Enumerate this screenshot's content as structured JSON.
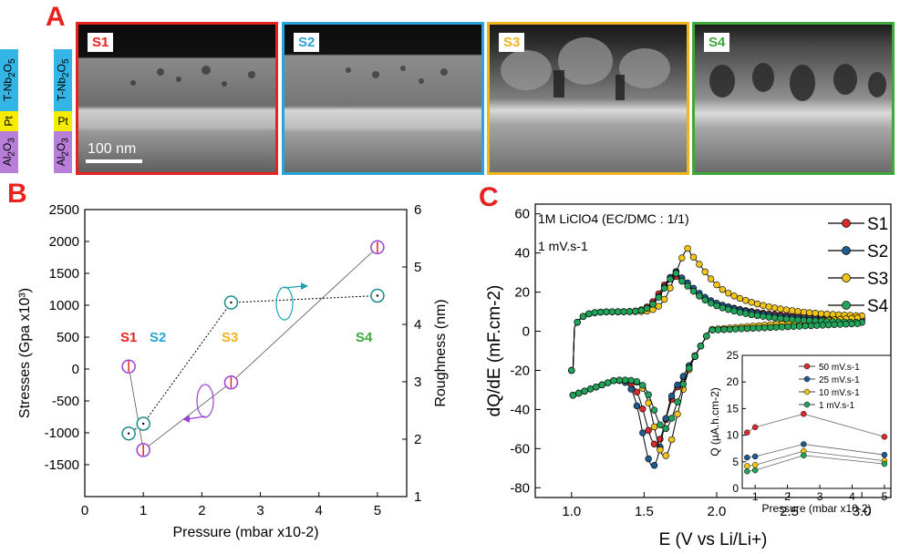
{
  "panel_a": {
    "letter": "A",
    "layers": [
      "T-Nb2O5",
      "Pt",
      "Al2O3"
    ],
    "layer_colors": [
      "#33b5e5",
      "#f5ec00",
      "#b87fd9"
    ],
    "scale_bar_label": "100 nm",
    "images": [
      {
        "label": "S1",
        "color": "#e8231f"
      },
      {
        "label": "S2",
        "color": "#2aa3d8"
      },
      {
        "label": "S3",
        "color": "#f2b31c"
      },
      {
        "label": "S4",
        "color": "#3ea83a"
      }
    ]
  },
  "panel_b": {
    "letter": "B",
    "sample_labels": [
      {
        "text": "S1",
        "color": "#e8231f"
      },
      {
        "text": "S2",
        "color": "#2aa3d8"
      },
      {
        "text": "S3",
        "color": "#f2b31c"
      },
      {
        "text": "S4",
        "color": "#3ea83a"
      }
    ]
  },
  "panel_c": {
    "letter": "C",
    "annotation_line1": "1M LiClO4 (EC/DMC : 1/1)",
    "annotation_line2": "1 mV.s-1"
  },
  "chart_data": [
    {
      "type": "scatter",
      "title": "",
      "xlabel": "Pressure (mbar x10-2)",
      "ylabel": "Stresses (Gpa x10³)",
      "y2label": "Roughness (nm)",
      "xlim": [
        0,
        5.5
      ],
      "ylim": [
        -2000,
        2500
      ],
      "y2lim": [
        1,
        6
      ],
      "x_ticks": [
        "0",
        "1",
        "2",
        "3",
        "4",
        "5"
      ],
      "y_ticks": [
        "-1500",
        "-1000",
        "-500",
        "0",
        "500",
        "1000",
        "1500",
        "2000",
        "2500"
      ],
      "y2_ticks": [
        "1",
        "2",
        "3",
        "4",
        "5",
        "6"
      ],
      "series": [
        {
          "axis": "left",
          "color": "#9b3fd6",
          "x": [
            0.75,
            1.0,
            2.5,
            5.0
          ],
          "y": [
            40,
            -1270,
            -210,
            1910
          ]
        },
        {
          "axis": "right",
          "color": "#1b8a8a",
          "x": [
            0.75,
            1.0,
            2.5,
            5.0
          ],
          "y": [
            2.1,
            2.27,
            4.38,
            4.5
          ]
        }
      ]
    },
    {
      "type": "line",
      "title": "",
      "xlabel": "E (V vs Li/Li+)",
      "ylabel": "dQ/dE (mF.cm-2)",
      "xlim": [
        0.75,
        3.2
      ],
      "ylim": [
        -85,
        65
      ],
      "x_ticks": [
        "1.0",
        "1.5",
        "2.0",
        "2.5",
        "3.0"
      ],
      "y_ticks": [
        "-80",
        "-60",
        "-40",
        "-20",
        "0",
        "20",
        "40",
        "60"
      ],
      "legend_position": "top-right",
      "series": [
        {
          "name": "S1",
          "color": "#d92b2b",
          "anodic_peak": [
            1.72,
            33
          ],
          "cathodic_peak": [
            1.58,
            -58
          ],
          "tail": 6
        },
        {
          "name": "S2",
          "color": "#1f5b8f",
          "anodic_peak": [
            1.74,
            35
          ],
          "cathodic_peak": [
            1.56,
            -69
          ],
          "tail": 5
        },
        {
          "name": "S3",
          "color": "#f0c419",
          "anodic_peak": [
            1.82,
            47
          ],
          "cathodic_peak": [
            1.64,
            -64
          ],
          "tail": 7
        },
        {
          "name": "S4",
          "color": "#22a35a",
          "anodic_peak": [
            1.74,
            34
          ],
          "cathodic_peak": [
            1.64,
            -50
          ],
          "tail": 4
        }
      ]
    },
    {
      "type": "line",
      "title": "",
      "xlabel": "Pressure (mbar x10-2)",
      "ylabel": "Q (µA.h.cm-2)",
      "xlim": [
        0.6,
        5.2
      ],
      "ylim": [
        0,
        25
      ],
      "x_ticks": [
        "1",
        "2",
        "3",
        "4",
        "5"
      ],
      "y_ticks": [
        "0",
        "5",
        "10",
        "15",
        "20",
        "25"
      ],
      "legend_position": "top-right",
      "categories": [
        0.75,
        1.0,
        2.5,
        5.0
      ],
      "series": [
        {
          "name": "50 mV.s-1",
          "color": "#d92b2b",
          "values": [
            10.5,
            11.5,
            14.0,
            9.7
          ]
        },
        {
          "name": "25 mV.s-1",
          "color": "#1f5b8f",
          "values": [
            5.8,
            6.0,
            8.3,
            6.3
          ]
        },
        {
          "name": "10 mV.s-1",
          "color": "#f0c419",
          "values": [
            4.2,
            4.4,
            7.0,
            5.2
          ]
        },
        {
          "name": "1 mV.s-1",
          "color": "#22a35a",
          "values": [
            3.2,
            3.4,
            6.2,
            4.6
          ]
        }
      ]
    }
  ]
}
